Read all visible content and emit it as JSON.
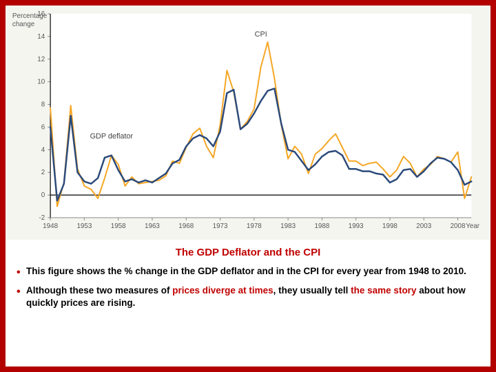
{
  "chart": {
    "type": "line",
    "background_color": "#f5f5f0",
    "plot_bg": "#ffffff",
    "axis_color": "#000000",
    "tick_color": "#888888",
    "ylabel_line1": "Percentage",
    "ylabel_line2": "change",
    "xlabel": "Year",
    "ylim": [
      -2,
      16
    ],
    "ytick_step": 2,
    "yticks": [
      -2,
      0,
      2,
      4,
      6,
      8,
      10,
      12,
      14,
      16
    ],
    "xlim": [
      1948,
      2010
    ],
    "xticks": [
      1948,
      1953,
      1958,
      1963,
      1968,
      1973,
      1978,
      1983,
      1988,
      1993,
      1998,
      2003,
      2008
    ],
    "label_fontsize": 10,
    "series": [
      {
        "name": "CPI",
        "label": "CPI",
        "color": "#f5a623",
        "line_width": 2,
        "label_x": 1979,
        "label_y": 14,
        "data": [
          [
            1948,
            7.7
          ],
          [
            1949,
            -1.0
          ],
          [
            1950,
            1.1
          ],
          [
            1951,
            7.9
          ],
          [
            1952,
            2.3
          ],
          [
            1953,
            0.8
          ],
          [
            1954,
            0.5
          ],
          [
            1955,
            -0.3
          ],
          [
            1956,
            1.5
          ],
          [
            1957,
            3.5
          ],
          [
            1958,
            2.7
          ],
          [
            1959,
            0.8
          ],
          [
            1960,
            1.6
          ],
          [
            1961,
            1.0
          ],
          [
            1962,
            1.1
          ],
          [
            1963,
            1.2
          ],
          [
            1964,
            1.3
          ],
          [
            1965,
            1.7
          ],
          [
            1966,
            3.0
          ],
          [
            1967,
            2.8
          ],
          [
            1968,
            4.2
          ],
          [
            1969,
            5.4
          ],
          [
            1970,
            5.9
          ],
          [
            1971,
            4.3
          ],
          [
            1972,
            3.3
          ],
          [
            1973,
            6.2
          ],
          [
            1974,
            11.0
          ],
          [
            1975,
            9.1
          ],
          [
            1976,
            5.8
          ],
          [
            1977,
            6.5
          ],
          [
            1978,
            7.6
          ],
          [
            1979,
            11.3
          ],
          [
            1980,
            13.5
          ],
          [
            1981,
            10.3
          ],
          [
            1982,
            6.2
          ],
          [
            1983,
            3.2
          ],
          [
            1984,
            4.3
          ],
          [
            1985,
            3.6
          ],
          [
            1986,
            1.9
          ],
          [
            1987,
            3.6
          ],
          [
            1988,
            4.1
          ],
          [
            1989,
            4.8
          ],
          [
            1990,
            5.4
          ],
          [
            1991,
            4.2
          ],
          [
            1992,
            3.0
          ],
          [
            1993,
            3.0
          ],
          [
            1994,
            2.6
          ],
          [
            1995,
            2.8
          ],
          [
            1996,
            2.9
          ],
          [
            1997,
            2.3
          ],
          [
            1998,
            1.6
          ],
          [
            1999,
            2.2
          ],
          [
            2000,
            3.4
          ],
          [
            2001,
            2.8
          ],
          [
            2002,
            1.6
          ],
          [
            2003,
            2.3
          ],
          [
            2004,
            2.7
          ],
          [
            2005,
            3.4
          ],
          [
            2006,
            3.2
          ],
          [
            2007,
            2.9
          ],
          [
            2008,
            3.8
          ],
          [
            2009,
            -0.3
          ],
          [
            2010,
            1.6
          ]
        ]
      },
      {
        "name": "GDP deflator",
        "label": "GDP deflator",
        "color": "#2b4a7a",
        "line_width": 2.5,
        "label_x": 1957,
        "label_y": 5.0,
        "data": [
          [
            1948,
            6.0
          ],
          [
            1949,
            -0.5
          ],
          [
            1950,
            1.0
          ],
          [
            1951,
            7.0
          ],
          [
            1952,
            2.0
          ],
          [
            1953,
            1.2
          ],
          [
            1954,
            1.0
          ],
          [
            1955,
            1.5
          ],
          [
            1956,
            3.3
          ],
          [
            1957,
            3.5
          ],
          [
            1958,
            2.2
          ],
          [
            1959,
            1.2
          ],
          [
            1960,
            1.4
          ],
          [
            1961,
            1.1
          ],
          [
            1962,
            1.3
          ],
          [
            1963,
            1.1
          ],
          [
            1964,
            1.5
          ],
          [
            1965,
            1.9
          ],
          [
            1966,
            2.8
          ],
          [
            1967,
            3.1
          ],
          [
            1968,
            4.3
          ],
          [
            1969,
            5.0
          ],
          [
            1970,
            5.3
          ],
          [
            1971,
            5.0
          ],
          [
            1972,
            4.3
          ],
          [
            1973,
            5.6
          ],
          [
            1974,
            9.0
          ],
          [
            1975,
            9.3
          ],
          [
            1976,
            5.8
          ],
          [
            1977,
            6.3
          ],
          [
            1978,
            7.2
          ],
          [
            1979,
            8.3
          ],
          [
            1980,
            9.2
          ],
          [
            1981,
            9.4
          ],
          [
            1982,
            6.3
          ],
          [
            1983,
            4.0
          ],
          [
            1984,
            3.8
          ],
          [
            1985,
            3.0
          ],
          [
            1986,
            2.2
          ],
          [
            1987,
            2.7
          ],
          [
            1988,
            3.4
          ],
          [
            1989,
            3.8
          ],
          [
            1990,
            3.9
          ],
          [
            1991,
            3.5
          ],
          [
            1992,
            2.3
          ],
          [
            1993,
            2.3
          ],
          [
            1994,
            2.1
          ],
          [
            1995,
            2.1
          ],
          [
            1996,
            1.9
          ],
          [
            1997,
            1.8
          ],
          [
            1998,
            1.1
          ],
          [
            1999,
            1.4
          ],
          [
            2000,
            2.2
          ],
          [
            2001,
            2.3
          ],
          [
            2002,
            1.6
          ],
          [
            2003,
            2.1
          ],
          [
            2004,
            2.8
          ],
          [
            2005,
            3.3
          ],
          [
            2006,
            3.2
          ],
          [
            2007,
            2.9
          ],
          [
            2008,
            2.2
          ],
          [
            2009,
            0.9
          ],
          [
            2010,
            1.2
          ]
        ]
      }
    ]
  },
  "caption": {
    "title": "The GDP Deflator and the CPI",
    "bullet1_a": "This figure shows the % change in the GDP deflator and in the CPI for every year from 1948 to 2010.",
    "bullet2_a": "Although these two measures of ",
    "bullet2_hl1": "prices diverge at times",
    "bullet2_b": ", they usually tell ",
    "bullet2_hl2": "the same story",
    "bullet2_c": " about how quickly prices are rising."
  }
}
